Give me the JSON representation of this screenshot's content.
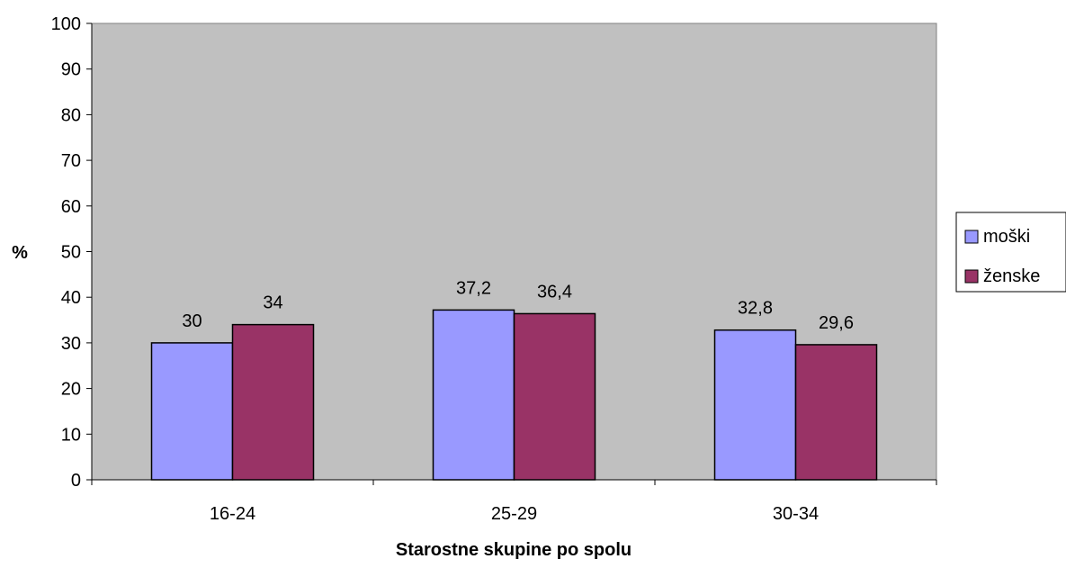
{
  "chart_data": {
    "type": "bar",
    "categories": [
      "16-24",
      "25-29",
      "30-34"
    ],
    "series": [
      {
        "name": "moški",
        "values": [
          30,
          37.2,
          32.8
        ],
        "labels": [
          "30",
          "37,2",
          "32,8"
        ],
        "color": "#9999FF"
      },
      {
        "name": "ženske",
        "values": [
          34,
          36.4,
          29.6
        ],
        "labels": [
          "34",
          "36,4",
          "29,6"
        ],
        "color": "#993366"
      }
    ],
    "yticks": [
      "0",
      "10",
      "20",
      "30",
      "40",
      "50",
      "60",
      "70",
      "80",
      "90",
      "100"
    ],
    "ylim": [
      0,
      100
    ],
    "ylabel": "%",
    "xlabel": "Starostne skupine po spolu",
    "plot_background": "#C0C0C0",
    "legend_position": "right",
    "grid": false
  }
}
